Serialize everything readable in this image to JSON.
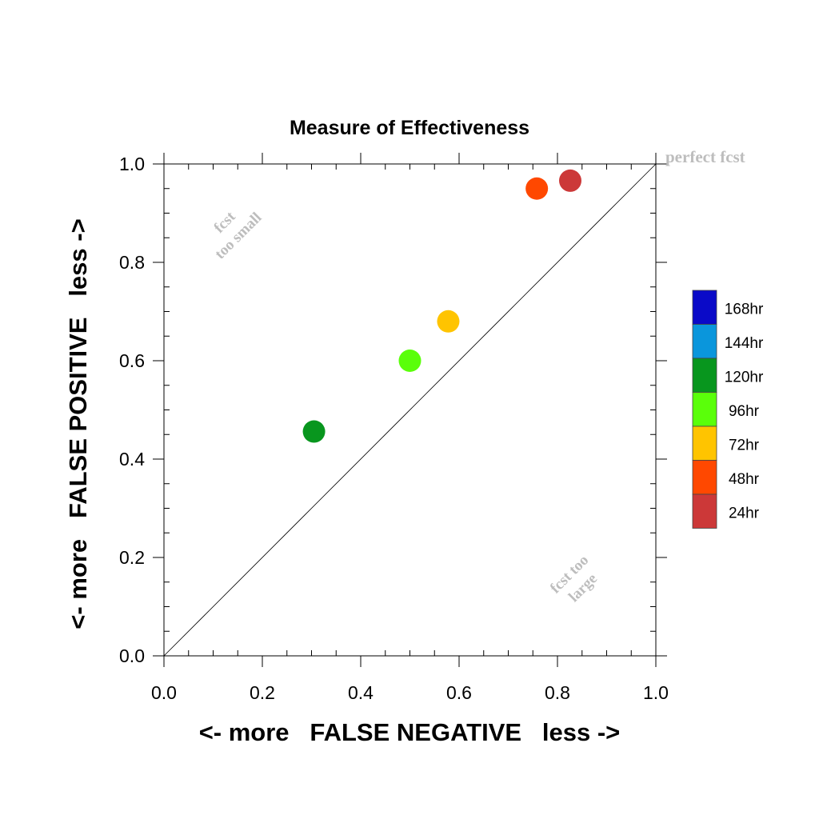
{
  "chart_data": {
    "type": "scatter",
    "title": "Measure of Effectiveness",
    "xlabel": "<- more   FALSE NEGATIVE   less ->",
    "ylabel": "<- more   FALSE POSITIVE   less ->",
    "xlim": [
      0.0,
      1.0
    ],
    "ylim": [
      0.0,
      1.0
    ],
    "xticks": [
      "0.0",
      "0.2",
      "0.4",
      "0.6",
      "0.8",
      "1.0"
    ],
    "yticks": [
      "0.0",
      "0.2",
      "0.4",
      "0.6",
      "0.8",
      "1.0"
    ],
    "grid": false,
    "diagonal_line": true,
    "annotations": {
      "perfect": "perfect fcst",
      "small_line1": "fcst",
      "small_line2": "too small",
      "large_line1": "fcst too",
      "large_line2": "large"
    },
    "legend": [
      {
        "label": "168hr",
        "color": "#0a0ac8"
      },
      {
        "label": "144hr",
        "color": "#0a96dc"
      },
      {
        "label": "120hr",
        "color": "#08961e"
      },
      {
        "label": "96hr",
        "color": "#5aff0a"
      },
      {
        "label": "72hr",
        "color": "#ffc400"
      },
      {
        "label": "48hr",
        "color": "#ff4800"
      },
      {
        "label": "24hr",
        "color": "#cc3838"
      }
    ],
    "points": [
      {
        "lead": "24hr",
        "x": 0.826,
        "y": 0.966,
        "color": "#cc3838"
      },
      {
        "lead": "48hr",
        "x": 0.758,
        "y": 0.95,
        "color": "#ff4800"
      },
      {
        "lead": "72hr",
        "x": 0.578,
        "y": 0.68,
        "color": "#ffc400"
      },
      {
        "lead": "96hr",
        "x": 0.5,
        "y": 0.6,
        "color": "#5aff0a"
      },
      {
        "lead": "120hr",
        "x": 0.305,
        "y": 0.456,
        "color": "#08961e"
      }
    ]
  }
}
